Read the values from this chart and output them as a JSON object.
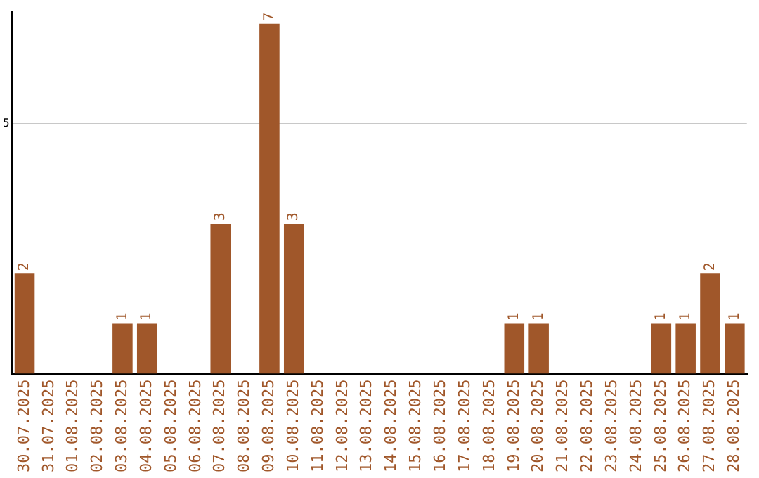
{
  "chart_data": {
    "type": "bar",
    "categories": [
      "30.07.2025",
      "31.07.2025",
      "01.08.2025",
      "02.08.2025",
      "03.08.2025",
      "04.08.2025",
      "05.08.2025",
      "06.08.2025",
      "07.08.2025",
      "08.08.2025",
      "09.08.2025",
      "10.08.2025",
      "11.08.2025",
      "12.08.2025",
      "13.08.2025",
      "14.08.2025",
      "15.08.2025",
      "16.08.2025",
      "17.08.2025",
      "18.08.2025",
      "19.08.2025",
      "20.08.2025",
      "21.08.2025",
      "22.08.2025",
      "23.08.2025",
      "24.08.2025",
      "25.08.2025",
      "26.08.2025",
      "27.08.2025",
      "28.08.2025"
    ],
    "values": [
      2,
      0,
      0,
      0,
      1,
      1,
      0,
      0,
      3,
      0,
      7,
      3,
      0,
      0,
      0,
      0,
      0,
      0,
      0,
      0,
      1,
      1,
      0,
      0,
      0,
      0,
      1,
      1,
      2,
      1
    ],
    "value_labels": [
      "2",
      null,
      null,
      null,
      "1",
      "1",
      null,
      null,
      "3",
      null,
      "7",
      "3",
      null,
      null,
      null,
      null,
      null,
      null,
      null,
      null,
      "1",
      "1",
      null,
      null,
      null,
      null,
      "1",
      "1",
      "2",
      "1"
    ],
    "color": "#a0572a",
    "ylim": [
      0,
      7.25
    ],
    "yticks": [
      5
    ],
    "grid": "y",
    "legend": false
  }
}
